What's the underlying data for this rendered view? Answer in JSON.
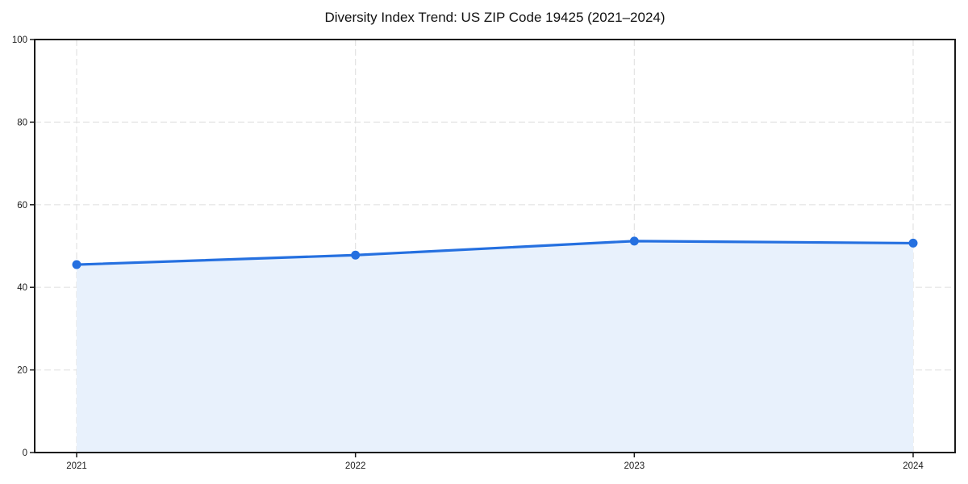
{
  "chart_data": {
    "type": "line",
    "title": "Diversity Index Trend: US ZIP Code 19425 (2021–2024)",
    "x": [
      "2021",
      "2022",
      "2023",
      "2024"
    ],
    "series": [
      {
        "name": "Diversity Index",
        "values": [
          45.5,
          47.8,
          51.2,
          50.7
        ]
      }
    ],
    "xlabel": "",
    "ylabel": "",
    "ylim": [
      0,
      100
    ],
    "yticks": [
      0,
      20,
      40,
      60,
      80,
      100
    ],
    "grid": "dashed, horizontal and vertical",
    "legend": "none",
    "marker": "circle",
    "area_fill": true,
    "colors": {
      "line": "#2570e0",
      "fill": "#e8f1fc",
      "grid": "#e3e3e3",
      "spine": "#1a1a1a",
      "text": "#1a1a1a",
      "title": "#111111",
      "background": "#ffffff"
    }
  }
}
